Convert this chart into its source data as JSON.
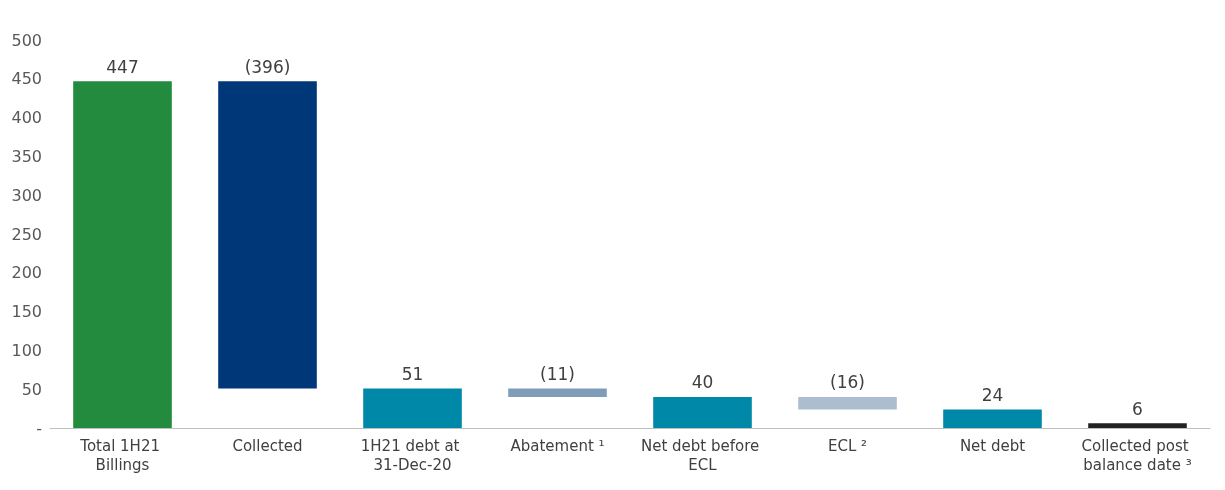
{
  "chart_data": {
    "type": "bar",
    "categories": [
      "Total 1H21 Billings",
      "Collected",
      "1H21 debt at 31-Dec-20",
      "Abatement ¹",
      "Net debt before ECL",
      "ECL ²",
      "Net debt",
      "Collected post balance date ³"
    ],
    "values": [
      447,
      -396,
      51,
      -11,
      40,
      -16,
      24,
      6
    ],
    "base": [
      0,
      447,
      0,
      51,
      0,
      40,
      0,
      0
    ],
    "colors": [
      "#238b3e",
      "#003778",
      "#0088a8",
      "#7f9db9",
      "#0088a8",
      "#adbdd0",
      "#0088a8",
      "#222222"
    ],
    "value_labels": [
      "447",
      "(396)",
      "51",
      "(11)",
      "40",
      "(16)",
      "24",
      "6"
    ],
    "ylim": [
      0,
      500
    ],
    "yticks": [
      {
        "value": 0,
        "label": "-"
      },
      50,
      100,
      150,
      200,
      250,
      300,
      350,
      400,
      450,
      500
    ]
  }
}
